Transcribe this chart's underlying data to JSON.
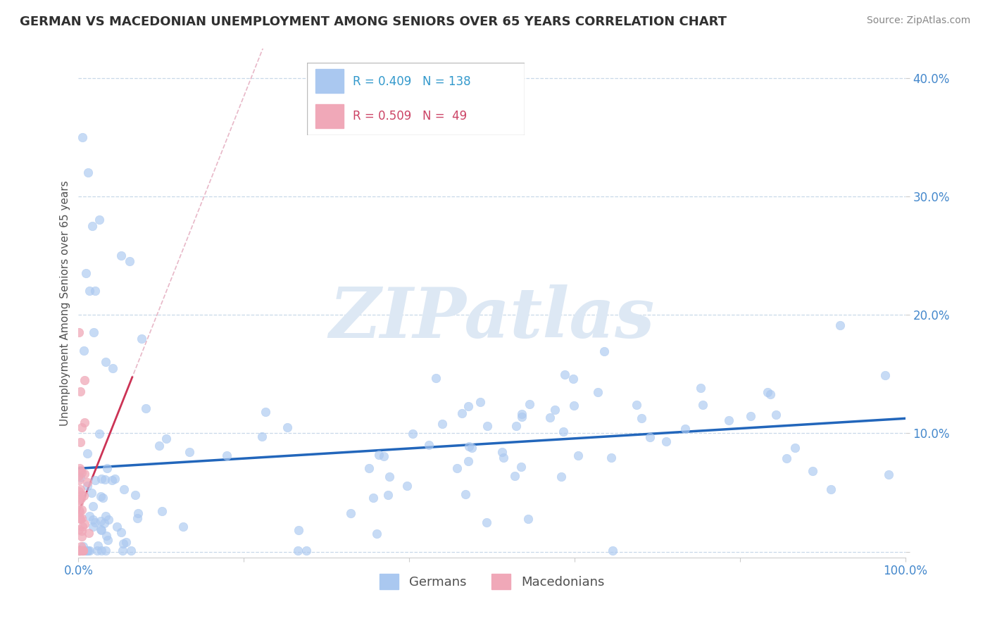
{
  "title": "GERMAN VS MACEDONIAN UNEMPLOYMENT AMONG SENIORS OVER 65 YEARS CORRELATION CHART",
  "source": "Source: ZipAtlas.com",
  "ylabel": "Unemployment Among Seniors over 65 years",
  "xlim": [
    0.0,
    1.0
  ],
  "ylim": [
    -0.005,
    0.425
  ],
  "yticks": [
    0.0,
    0.1,
    0.2,
    0.3,
    0.4
  ],
  "xticks": [
    0.0,
    0.2,
    0.4,
    0.6,
    0.8,
    1.0
  ],
  "xtick_labels": [
    "0.0%",
    "",
    "",
    "",
    "",
    "100.0%"
  ],
  "ytick_labels": [
    "",
    "10.0%",
    "20.0%",
    "30.0%",
    "40.0%"
  ],
  "german_R": 0.409,
  "german_N": 138,
  "macedonian_R": 0.509,
  "macedonian_N": 49,
  "german_color": "#aac8f0",
  "german_edge_color": "#aac8f0",
  "macedonian_color": "#f0a8b8",
  "macedonian_edge_color": "#f0a8b8",
  "german_line_color": "#2266bb",
  "macedonian_line_color": "#cc3355",
  "macedonian_dashed_color": "#e8b8c8",
  "background_color": "#ffffff",
  "grid_color": "#c8d8e8",
  "watermark_color": "#dde8f4",
  "title_color": "#303030",
  "source_color": "#888888",
  "axis_label_color": "#505050",
  "tick_color_blue": "#4488cc",
  "legend_edge_color": "#bbbbbb",
  "german_legend_text_color": "#3399cc",
  "macedonian_legend_text_color": "#cc4466"
}
